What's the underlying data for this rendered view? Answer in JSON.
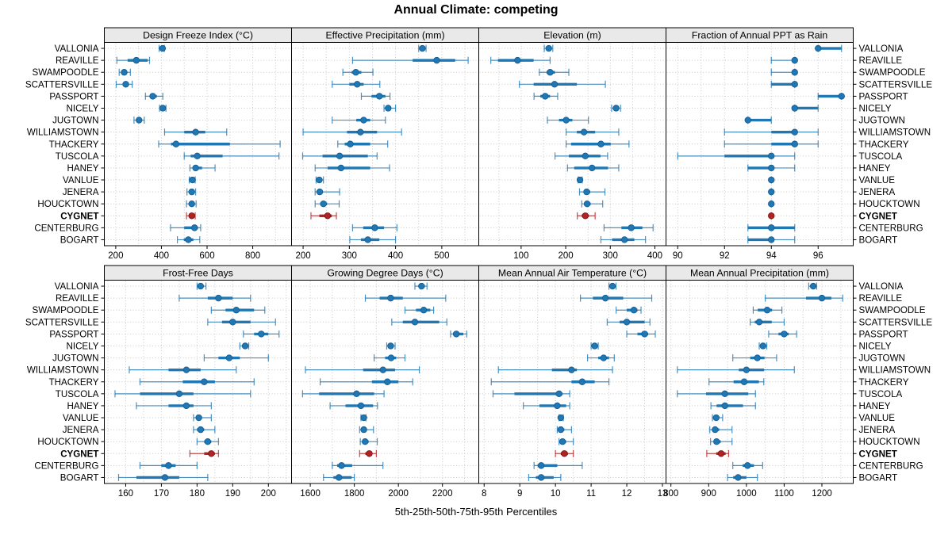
{
  "title": "Annual Climate: competing",
  "caption": "5th-25th-50th-75th-95th Percentiles",
  "colors": {
    "series": "#1f77b4",
    "series_dark": "#15598f",
    "highlight": "#b22222",
    "highlight_dark": "#7a1414",
    "strip_bg": "#e9e9e9",
    "grid": "#c9c9c9",
    "border": "#000000"
  },
  "locations": [
    "VALLONIA",
    "REAVILLE",
    "SWAMPOODLE",
    "SCATTERSVILLE",
    "PASSPORT",
    "NICELY",
    "JUGTOWN",
    "WILLIAMSTOWN",
    "THACKERY",
    "TUSCOLA",
    "HANEY",
    "VANLUE",
    "JENERA",
    "HOUCKTOWN",
    "CYGNET",
    "CENTERBURG",
    "BOGART"
  ],
  "highlight_location": "CYGNET",
  "chart_data": {
    "type": "dotplot-percentiles",
    "layout": "2 rows x 4 cols trellis",
    "percentile_labels": [
      "5th",
      "25th",
      "50th",
      "75th",
      "95th"
    ],
    "panels": [
      {
        "slug": "design-freeze-index",
        "title": "Design Freeze Index (°C)",
        "xlim": [
          150,
          970
        ],
        "ticks": [
          200,
          400,
          600,
          800
        ],
        "grid_step": 100,
        "rows": [
          [
            390,
            400,
            405,
            408,
            413
          ],
          [
            205,
            252,
            290,
            340,
            348
          ],
          [
            215,
            228,
            237,
            248,
            264
          ],
          [
            202,
            230,
            244,
            258,
            272
          ],
          [
            330,
            348,
            362,
            380,
            406
          ],
          [
            392,
            400,
            406,
            413,
            420
          ],
          [
            280,
            293,
            302,
            312,
            325
          ],
          [
            414,
            500,
            550,
            592,
            686
          ],
          [
            388,
            442,
            464,
            700,
            920
          ],
          [
            500,
            528,
            557,
            668,
            915
          ],
          [
            525,
            540,
            550,
            578,
            635
          ],
          [
            522,
            530,
            536,
            542,
            548
          ],
          [
            512,
            525,
            533,
            540,
            550
          ],
          [
            510,
            524,
            533,
            542,
            552
          ],
          [
            510,
            525,
            533,
            540,
            548
          ],
          [
            440,
            500,
            545,
            560,
            572
          ],
          [
            470,
            498,
            518,
            540,
            568
          ]
        ]
      },
      {
        "slug": "effective-precipitation",
        "title": "Effective Precipitation (mm)",
        "xlim": [
          175,
          580
        ],
        "ticks": [
          200,
          300,
          400,
          500
        ],
        "grid_step": 50,
        "rows": [
          [
            450,
            455,
            458,
            462,
            466
          ],
          [
            307,
            437,
            489,
            529,
            557
          ],
          [
            286,
            305,
            314,
            326,
            351
          ],
          [
            263,
            300,
            317,
            331,
            366
          ],
          [
            326,
            348,
            365,
            378,
            388
          ],
          [
            375,
            380,
            384,
            390,
            400
          ],
          [
            263,
            315,
            331,
            345,
            378
          ],
          [
            200,
            295,
            324,
            360,
            413
          ],
          [
            275,
            290,
            302,
            345,
            383
          ],
          [
            199,
            242,
            279,
            340,
            360
          ],
          [
            226,
            253,
            282,
            345,
            387
          ],
          [
            228,
            232,
            235,
            238,
            244
          ],
          [
            226,
            231,
            236,
            242,
            279
          ],
          [
            226,
            237,
            244,
            252,
            278
          ],
          [
            217,
            235,
            253,
            262,
            272
          ],
          [
            307,
            330,
            355,
            375,
            403
          ],
          [
            301,
            325,
            340,
            365,
            400
          ]
        ]
      },
      {
        "slug": "elevation",
        "title": "Elevation (m)",
        "xlim": [
          5,
          425
        ],
        "ticks": [
          100,
          200,
          300,
          400
        ],
        "grid_step": 50,
        "rows": [
          [
            152,
            158,
            162,
            166,
            171
          ],
          [
            32,
            48,
            92,
            128,
            165
          ],
          [
            141,
            157,
            165,
            176,
            207
          ],
          [
            96,
            128,
            175,
            225,
            289
          ],
          [
            129,
            143,
            154,
            165,
            182
          ],
          [
            303,
            309,
            313,
            318,
            323
          ],
          [
            159,
            185,
            201,
            215,
            251
          ],
          [
            201,
            225,
            241,
            266,
            319
          ],
          [
            201,
            212,
            279,
            301,
            342
          ],
          [
            176,
            207,
            244,
            278,
            294
          ],
          [
            204,
            219,
            259,
            295,
            319
          ],
          [
            228,
            230,
            232,
            234,
            237
          ],
          [
            231,
            240,
            247,
            255,
            288
          ],
          [
            236,
            242,
            248,
            256,
            283
          ],
          [
            226,
            236,
            244,
            252,
            266
          ],
          [
            286,
            325,
            347,
            372,
            396
          ],
          [
            279,
            304,
            332,
            354,
            379
          ]
        ]
      },
      {
        "slug": "fraction-ppt-rain",
        "title": "Fraction of Annual PPT as Rain",
        "xlim": [
          89.5,
          97.5
        ],
        "ticks": [
          90,
          92,
          94,
          96
        ],
        "grid_step": 1,
        "rows": [
          [
            96,
            96,
            96,
            97,
            97
          ],
          [
            94,
            95,
            95,
            95,
            95
          ],
          [
            94,
            95,
            95,
            95,
            95
          ],
          [
            94,
            94,
            95,
            95,
            95
          ],
          [
            96,
            96,
            97,
            97,
            97
          ],
          [
            95,
            95,
            95,
            96,
            96
          ],
          [
            93,
            93,
            93,
            94,
            94
          ],
          [
            92,
            94,
            95,
            95,
            96
          ],
          [
            92,
            94,
            95,
            95,
            96
          ],
          [
            90,
            92,
            94,
            94,
            95
          ],
          [
            93,
            93,
            94,
            94,
            95
          ],
          [
            94,
            94,
            94,
            94,
            94
          ],
          [
            94,
            94,
            94,
            94,
            94
          ],
          [
            94,
            94,
            94,
            94,
            94
          ],
          [
            94,
            94,
            94,
            94,
            94
          ],
          [
            93,
            93,
            94,
            95,
            95
          ],
          [
            93,
            93,
            94,
            94,
            95
          ]
        ]
      },
      {
        "slug": "frost-free-days",
        "title": "Frost-Free Days",
        "xlim": [
          154,
          206.5
        ],
        "ticks": [
          160,
          170,
          180,
          190,
          200
        ],
        "grid_step": 5,
        "rows": [
          [
            180,
            180.5,
            181,
            181.5,
            182.5
          ],
          [
            175,
            183,
            186,
            190,
            195
          ],
          [
            184,
            188,
            191,
            196,
            199
          ],
          [
            183,
            187,
            190,
            195,
            202
          ],
          [
            193,
            196,
            198,
            200,
            203
          ],
          [
            192,
            193,
            193.5,
            194,
            194.5
          ],
          [
            182,
            186,
            189,
            192,
            200
          ],
          [
            161,
            172,
            177,
            181,
            191
          ],
          [
            164,
            176,
            182,
            185,
            196
          ],
          [
            157,
            164,
            175,
            179,
            195
          ],
          [
            163,
            172,
            177,
            179,
            184
          ],
          [
            179,
            180,
            180.5,
            181,
            184
          ],
          [
            179,
            180,
            181,
            182,
            185
          ],
          [
            180,
            182,
            183,
            184,
            186
          ],
          [
            178,
            182,
            184,
            185,
            186
          ],
          [
            164,
            170,
            172,
            174,
            180
          ],
          [
            158,
            163,
            171,
            175,
            183
          ]
        ]
      },
      {
        "slug": "growing-degree-days",
        "title": "Growing Degree Days (°C)",
        "xlim": [
          1515,
          2365
        ],
        "ticks": [
          1600,
          1800,
          2000,
          2200
        ],
        "grid_step": 100,
        "rows": [
          [
            2075,
            2095,
            2105,
            2120,
            2130
          ],
          [
            1850,
            1915,
            1965,
            2020,
            2215
          ],
          [
            2030,
            2080,
            2115,
            2145,
            2160
          ],
          [
            1970,
            2020,
            2075,
            2185,
            2220
          ],
          [
            2237,
            2248,
            2263,
            2295,
            2310
          ],
          [
            1947,
            1957,
            1965,
            1975,
            1985
          ],
          [
            1890,
            1940,
            1967,
            1990,
            2030
          ],
          [
            1578,
            1840,
            1930,
            1985,
            2095
          ],
          [
            1645,
            1880,
            1950,
            2000,
            2065
          ],
          [
            1565,
            1640,
            1810,
            1890,
            1935
          ],
          [
            1690,
            1760,
            1830,
            1885,
            1905
          ],
          [
            1830,
            1838,
            1843,
            1848,
            1853
          ],
          [
            1824,
            1835,
            1843,
            1855,
            1887
          ],
          [
            1827,
            1840,
            1849,
            1865,
            1904
          ],
          [
            1824,
            1850,
            1868,
            1880,
            1900
          ],
          [
            1700,
            1722,
            1742,
            1790,
            1930
          ],
          [
            1660,
            1705,
            1730,
            1788,
            1800
          ]
        ]
      },
      {
        "slug": "mean-annual-air-temperature",
        "title": "Mean Annual Air Temperature (°C)",
        "xlim": [
          7.85,
          13.1
        ],
        "ticks": [
          8,
          9,
          10,
          11,
          12,
          13
        ],
        "grid_step": 0.5,
        "rows": [
          [
            11.5,
            11.55,
            11.6,
            11.65,
            11.7
          ],
          [
            10.7,
            11.05,
            11.4,
            11.9,
            12.7
          ],
          [
            11.7,
            12.0,
            12.2,
            12.3,
            12.4
          ],
          [
            11.45,
            11.8,
            12.0,
            12.5,
            12.65
          ],
          [
            12.0,
            12.3,
            12.5,
            12.6,
            12.8
          ],
          [
            11.0,
            11.05,
            11.1,
            11.15,
            11.2
          ],
          [
            10.9,
            11.2,
            11.35,
            11.5,
            11.65
          ],
          [
            8.4,
            9.9,
            10.45,
            10.6,
            11.6
          ],
          [
            8.2,
            10.45,
            10.75,
            11.1,
            11.5
          ],
          [
            8.25,
            8.85,
            10.1,
            10.2,
            10.4
          ],
          [
            9.1,
            9.55,
            10.05,
            10.3,
            10.4
          ],
          [
            10.1,
            10.12,
            10.15,
            10.18,
            10.22
          ],
          [
            10.05,
            10.1,
            10.15,
            10.25,
            10.45
          ],
          [
            10.1,
            10.15,
            10.2,
            10.3,
            10.5
          ],
          [
            10.0,
            10.15,
            10.25,
            10.35,
            10.5
          ],
          [
            9.4,
            9.5,
            9.6,
            10.05,
            10.75
          ],
          [
            9.25,
            9.45,
            9.6,
            9.95,
            10.15
          ]
        ]
      },
      {
        "slug": "mean-annual-precipitation",
        "title": "Mean Annual Precipitation (mm)",
        "xlim": [
          787,
          1283
        ],
        "ticks": [
          800,
          900,
          1000,
          1100,
          1200
        ],
        "grid_step": 50,
        "rows": [
          [
            1165,
            1172,
            1177,
            1182,
            1186
          ],
          [
            1050,
            1158,
            1200,
            1225,
            1255
          ],
          [
            1018,
            1030,
            1055,
            1068,
            1094
          ],
          [
            1010,
            1022,
            1034,
            1067,
            1100
          ],
          [
            1059,
            1085,
            1100,
            1112,
            1133
          ],
          [
            1034,
            1040,
            1044,
            1049,
            1054
          ],
          [
            964,
            1010,
            1029,
            1048,
            1080
          ],
          [
            817,
            980,
            1000,
            1047,
            1127
          ],
          [
            901,
            966,
            994,
            1033,
            1046
          ],
          [
            817,
            893,
            943,
            1005,
            1024
          ],
          [
            906,
            921,
            943,
            991,
            1024
          ],
          [
            910,
            915,
            920,
            927,
            937
          ],
          [
            903,
            910,
            917,
            928,
            962
          ],
          [
            905,
            913,
            921,
            932,
            962
          ],
          [
            895,
            920,
            933,
            945,
            953
          ],
          [
            964,
            990,
            1003,
            1020,
            1043
          ],
          [
            950,
            965,
            978,
            1000,
            1029
          ]
        ]
      }
    ]
  }
}
